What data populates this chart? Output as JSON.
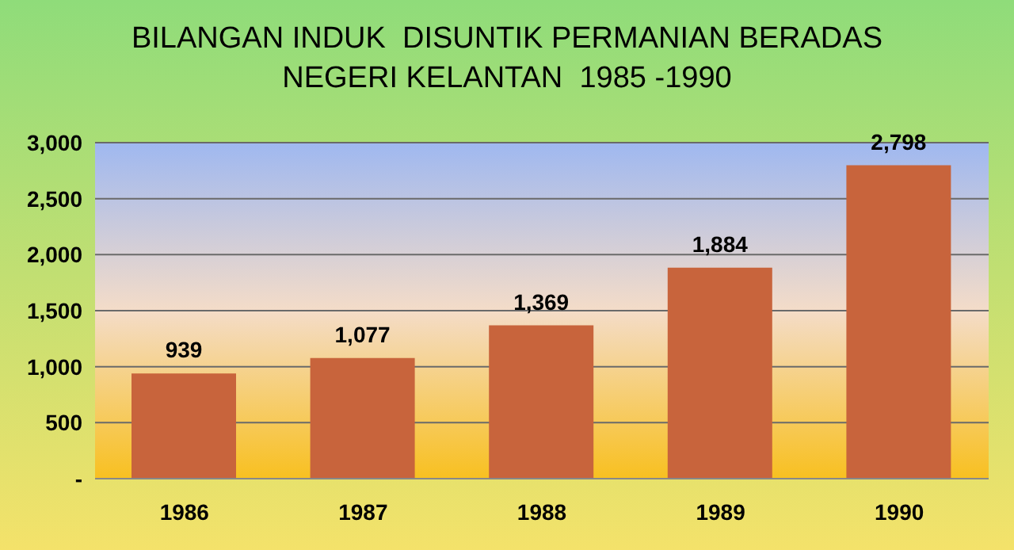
{
  "chart_data": {
    "type": "bar",
    "title": "BILANGAN INDUK  DISUNTIK PERMANIAN BERADAS\nNEGERI KELANTAN  1985 -1990",
    "categories": [
      "1986",
      "1987",
      "1988",
      "1989",
      "1990"
    ],
    "values": [
      939,
      1077,
      1369,
      1884,
      2798
    ],
    "value_labels": [
      "939",
      "1,077",
      "1,369",
      "1,884",
      "2,798"
    ],
    "color": "#c8643c",
    "ylim": [
      0,
      3000
    ],
    "yticks": [
      {
        "value": 0,
        "label": "-"
      },
      500,
      {
        "value": 1000,
        "label": "1,000"
      },
      {
        "value": 1500,
        "label": "1,500"
      },
      {
        "value": 2000,
        "label": "2,000"
      },
      {
        "value": 2500,
        "label": "2,500"
      },
      {
        "value": 3000,
        "label": "3,000"
      }
    ],
    "grid": "y"
  }
}
